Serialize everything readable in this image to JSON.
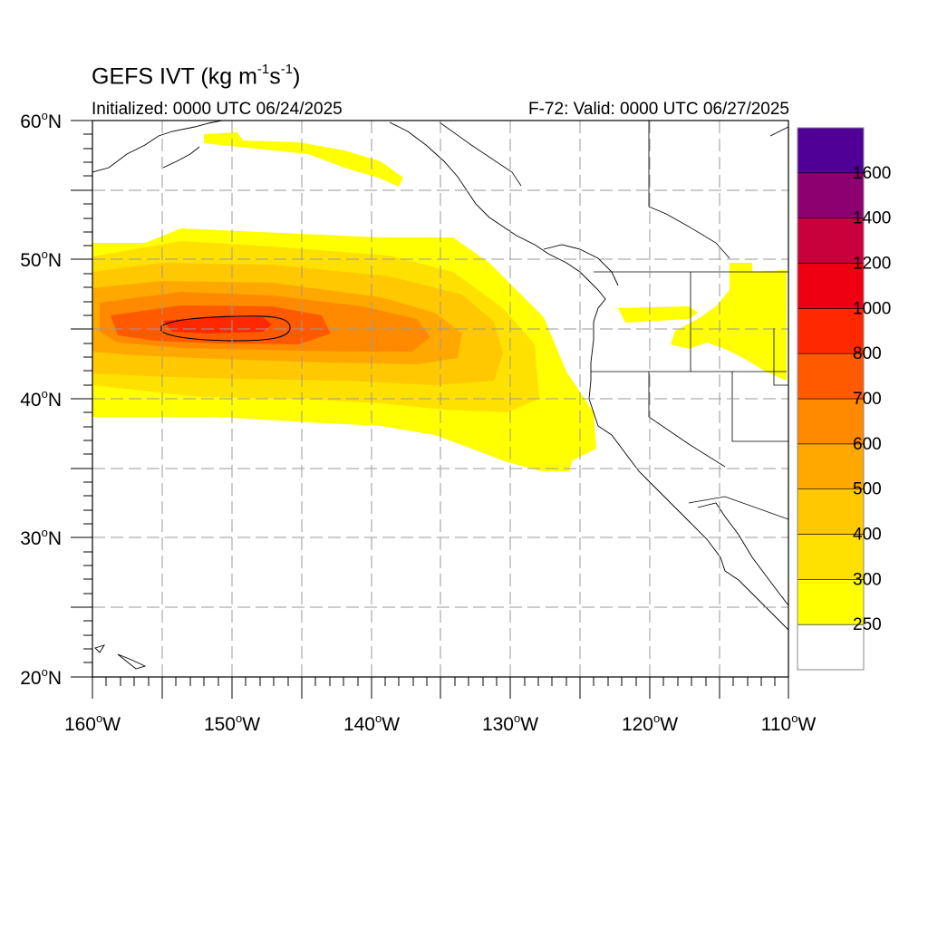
{
  "header": {
    "title_main": "GEFS IVT (kg m",
    "title_exp1": "-1",
    "title_mid": "s",
    "title_exp2": "-1",
    "title_end": ")",
    "initialized": "Initialized: 0000 UTC 06/24/2025",
    "valid": "F-72: Valid: 0000 UTC 06/27/2025"
  },
  "map": {
    "lon_range": [
      -160,
      -110
    ],
    "lat_range": [
      20,
      60
    ],
    "grid": "dashed",
    "lon_labels": [
      {
        "lon": -160,
        "text": "160",
        "hemi": "W"
      },
      {
        "lon": -150,
        "text": "150",
        "hemi": "W"
      },
      {
        "lon": -140,
        "text": "140",
        "hemi": "W"
      },
      {
        "lon": -130,
        "text": "130",
        "hemi": "W"
      },
      {
        "lon": -120,
        "text": "120",
        "hemi": "W"
      },
      {
        "lon": -110,
        "text": "110",
        "hemi": "W"
      }
    ],
    "lat_labels": [
      {
        "lat": 60,
        "text": "60",
        "hemi": "N"
      },
      {
        "lat": 50,
        "text": "50",
        "hemi": "N"
      },
      {
        "lat": 40,
        "text": "40",
        "hemi": "N"
      },
      {
        "lat": 30,
        "text": "30",
        "hemi": "N"
      },
      {
        "lat": 20,
        "text": "20",
        "hemi": "N"
      }
    ]
  },
  "colorbar": {
    "levels": [
      "250",
      "300",
      "400",
      "500",
      "600",
      "700",
      "800",
      "1000",
      "1200",
      "1400",
      "1600"
    ],
    "colors": [
      "#ffffff",
      "#ffff00",
      "#ffe100",
      "#ffc800",
      "#ffa800",
      "#ff8a00",
      "#ff5a00",
      "#ff2800",
      "#ee0010",
      "#c8003c",
      "#8c0070",
      "#500096"
    ]
  }
}
